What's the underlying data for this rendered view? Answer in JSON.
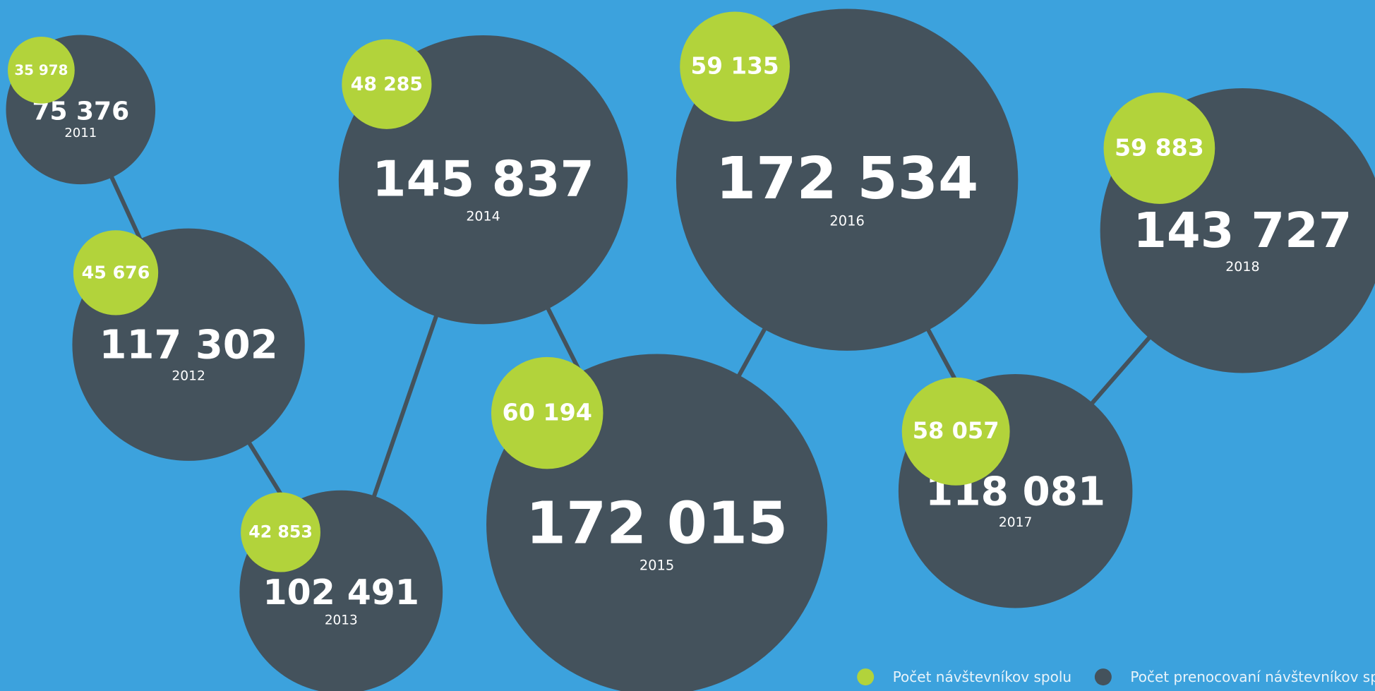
{
  "chart_data": {
    "type": "bubble",
    "categories": [
      "2011",
      "2012",
      "2013",
      "2014",
      "2015",
      "2016",
      "2017",
      "2018"
    ],
    "series": [
      {
        "name": "Počet návštevníkov spolu",
        "color": "#b2d33b",
        "values": [
          35978,
          45676,
          42853,
          48285,
          60194,
          59135,
          58057,
          59883
        ],
        "value_labels": [
          "35 978",
          "45 676",
          "42 853",
          "48 285",
          "60 194",
          "59 135",
          "58 057",
          "59 883"
        ]
      },
      {
        "name": "Počet prenocovaní návštevníkov spolu",
        "color": "#44525c",
        "values": [
          75376,
          117302,
          102491,
          145837,
          172015,
          172534,
          118081,
          143727
        ],
        "value_labels": [
          "75 376",
          "117 302",
          "102 491",
          "145 837",
          "172 015",
          "172 534",
          "118 081",
          "143 727"
        ]
      }
    ],
    "legend": "bottom-right"
  }
}
